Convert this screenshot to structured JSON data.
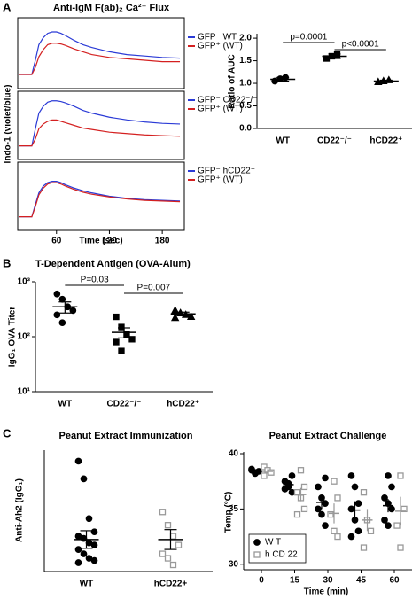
{
  "panel_labels": [
    "A",
    "B",
    "C"
  ],
  "chart_data": [
    {
      "type": "line",
      "title": "Anti-IgM F(ab)₂ Ca²⁺ Flux",
      "xlim": [
        16,
        205
      ],
      "ylim": [
        0,
        100
      ],
      "x": [
        17,
        25,
        32,
        36,
        40,
        45,
        50,
        55,
        60,
        65,
        70,
        80,
        90,
        100,
        120,
        140,
        160,
        180,
        200
      ],
      "series": [
        {
          "name": "GFP⁻ WT",
          "color": "#2b3bd6",
          "values": [
            20,
            20,
            20,
            40,
            62,
            72,
            78,
            80,
            80,
            78,
            75,
            68,
            62,
            58,
            52,
            48,
            46,
            44,
            43
          ]
        },
        {
          "name": "GFP⁺ (WT)",
          "color": "#d42020",
          "values": [
            20,
            20,
            20,
            30,
            45,
            55,
            62,
            64,
            64,
            63,
            61,
            56,
            52,
            48,
            44,
            42,
            40,
            38,
            38
          ]
        }
      ]
    },
    {
      "type": "line",
      "ylabel": "Indo-1 (violet/blue)",
      "xlim": [
        16,
        205
      ],
      "ylim": [
        0,
        100
      ],
      "x": [
        17,
        25,
        32,
        36,
        40,
        45,
        50,
        55,
        60,
        65,
        70,
        80,
        90,
        100,
        120,
        140,
        160,
        180,
        200
      ],
      "series": [
        {
          "name": "GFP⁻ CD22⁻/⁻",
          "color": "#2b3bd6",
          "values": [
            20,
            20,
            20,
            45,
            68,
            78,
            84,
            86,
            86,
            85,
            83,
            78,
            72,
            68,
            62,
            58,
            55,
            53,
            52
          ]
        },
        {
          "name": "GFP⁺ (WT)",
          "color": "#d42020",
          "values": [
            20,
            20,
            20,
            30,
            45,
            52,
            56,
            58,
            58,
            56,
            54,
            50,
            46,
            44,
            40,
            38,
            36,
            35,
            34
          ]
        }
      ]
    },
    {
      "type": "line",
      "xlabel": "Time (sec)",
      "xlim": [
        16,
        205
      ],
      "ylim": [
        0,
        100
      ],
      "xticks": [
        60,
        120,
        180
      ],
      "x": [
        17,
        25,
        32,
        36,
        40,
        45,
        50,
        55,
        60,
        65,
        70,
        80,
        90,
        100,
        120,
        140,
        160,
        180,
        200
      ],
      "series": [
        {
          "name": "GFP⁻ hCD22⁺",
          "color": "#2b3bd6",
          "values": [
            20,
            20,
            20,
            38,
            55,
            65,
            70,
            72,
            72,
            70,
            67,
            62,
            58,
            55,
            50,
            47,
            45,
            44,
            43
          ]
        },
        {
          "name": "GFP⁺ (WT)",
          "color": "#d42020",
          "values": [
            20,
            20,
            20,
            35,
            52,
            62,
            68,
            70,
            70,
            68,
            65,
            60,
            56,
            53,
            49,
            46,
            44,
            43,
            42
          ]
        }
      ]
    },
    {
      "type": "dot",
      "ylabel": "Ratio of AUC",
      "categories": [
        "WT",
        "CD22⁻/⁻",
        "hCD22⁺"
      ],
      "ylim": [
        0,
        2.1
      ],
      "yticks": [
        {
          "value": 0,
          "label": "0.0"
        },
        0.5,
        {
          "value": 1,
          "label": "1.0"
        },
        1.5,
        {
          "value": 2,
          "label": "2.0"
        }
      ],
      "markers": [
        "circle",
        "square",
        "triangle"
      ],
      "filled": [
        true,
        true,
        true
      ],
      "colors": [
        "#000000",
        "#000000",
        "#000000"
      ],
      "values": [
        [
          1.05,
          1.1,
          1.13
        ],
        [
          1.55,
          1.6,
          1.64
        ],
        [
          1.03,
          1.05,
          1.07
        ]
      ],
      "means": [
        1.09,
        1.6,
        1.05
      ],
      "errors": [
        0.04,
        0.05,
        0.02
      ],
      "annotations": [
        "p=0.0001",
        "p<0.0001"
      ]
    },
    {
      "type": "dot",
      "title": "T-Dependent Antigen (OVA-Alum)",
      "ylabel": "IgG₁ OVA Titer",
      "log_scale": true,
      "categories": [
        "WT",
        "CD22⁻/⁻",
        "hCD22⁺"
      ],
      "ylim": [
        10,
        1000
      ],
      "yticks": [
        {
          "value": 10,
          "label": "10¹"
        },
        {
          "value": 100,
          "label": "10²"
        },
        {
          "value": 1000,
          "label": "10³"
        }
      ],
      "markers": [
        "circle",
        "square",
        "triangle"
      ],
      "filled": [
        true,
        true,
        true
      ],
      "colors": [
        "#000000",
        "#000000",
        "#000000"
      ],
      "values": [
        [
          600,
          480,
          350,
          300,
          250,
          180
        ],
        [
          230,
          150,
          110,
          90,
          80,
          55
        ],
        [
          300,
          270,
          250,
          230,
          220
        ]
      ],
      "means": [
        350,
        120,
        260
      ],
      "errors": [
        80,
        25,
        20
      ],
      "annotations": [
        "P=0.03",
        "P=0.007"
      ]
    },
    {
      "type": "dot",
      "title": "Peanut Extract Immunization",
      "ylabel": "Anti-Ah2 (IgG₁)",
      "categories": [
        "WT",
        "hCD22+"
      ],
      "ylim": [
        0,
        550
      ],
      "markers": [
        "circle",
        "square"
      ],
      "filled": [
        true,
        false
      ],
      "colors": [
        "#000000",
        "#999999"
      ],
      "values": [
        [
          500,
          420,
          240,
          180,
          160,
          150,
          130,
          120,
          100,
          80,
          60,
          50,
          40
        ],
        [
          270,
          210,
          160,
          120,
          80,
          60,
          30
        ]
      ],
      "means": [
        145,
        145
      ],
      "errors": [
        40,
        45
      ]
    },
    {
      "type": "scatter",
      "title": "Peanut Extract Challenge",
      "ylabel": "Temp (°C)",
      "xlabel": "Time (min)",
      "xlim": [
        -8,
        68
      ],
      "xticks": [
        0,
        15,
        30,
        45,
        60
      ],
      "ylim": [
        29.5,
        40
      ],
      "yticks": [
        30,
        35,
        40
      ],
      "legend": "lower left",
      "series": [
        {
          "name": "W T",
          "color": "#000000",
          "marker": "circle",
          "filled": true,
          "x": [
            0,
            0,
            0,
            0,
            0,
            15,
            15,
            15,
            15,
            15,
            15,
            30,
            30,
            30,
            30,
            30,
            30,
            30,
            45,
            45,
            45,
            45,
            45,
            45,
            45,
            60,
            60,
            60,
            60,
            60,
            60,
            60
          ],
          "values": [
            38.5,
            38.3,
            38.4,
            38.6,
            38.2,
            38,
            37.5,
            37,
            36.5,
            36.8,
            37.3,
            37.8,
            37,
            36,
            35.5,
            35,
            34.5,
            33.5,
            38,
            37,
            35.5,
            35,
            34,
            33,
            32.5,
            38,
            37,
            36,
            35.5,
            35,
            34,
            33.5
          ],
          "times": [
            0,
            15,
            30,
            45,
            60
          ],
          "means": [
            38.4,
            37.2,
            35.6,
            34.9,
            35.3
          ],
          "errors": [
            0.1,
            0.3,
            0.6,
            0.8,
            0.6
          ]
        },
        {
          "name": "h CD 22",
          "color": "#999999",
          "marker": "square",
          "filled": false,
          "x": [
            0,
            0,
            0,
            0,
            15,
            15,
            15,
            15,
            15,
            15,
            30,
            30,
            30,
            30,
            30,
            45,
            45,
            45,
            45,
            60,
            60,
            60,
            60
          ],
          "values": [
            38.8,
            38.5,
            38.3,
            38,
            38.5,
            37,
            36.5,
            36,
            35,
            34.5,
            37.5,
            36,
            34.5,
            33,
            32.5,
            36.5,
            34,
            33,
            31.5,
            38,
            35,
            33.5,
            31.5
          ],
          "times": [
            0,
            15,
            30,
            45,
            60
          ],
          "means": [
            38.4,
            36.3,
            34.6,
            34,
            34.8
          ],
          "errors": [
            0.2,
            0.6,
            0.9,
            1,
            1.3
          ]
        }
      ]
    }
  ]
}
